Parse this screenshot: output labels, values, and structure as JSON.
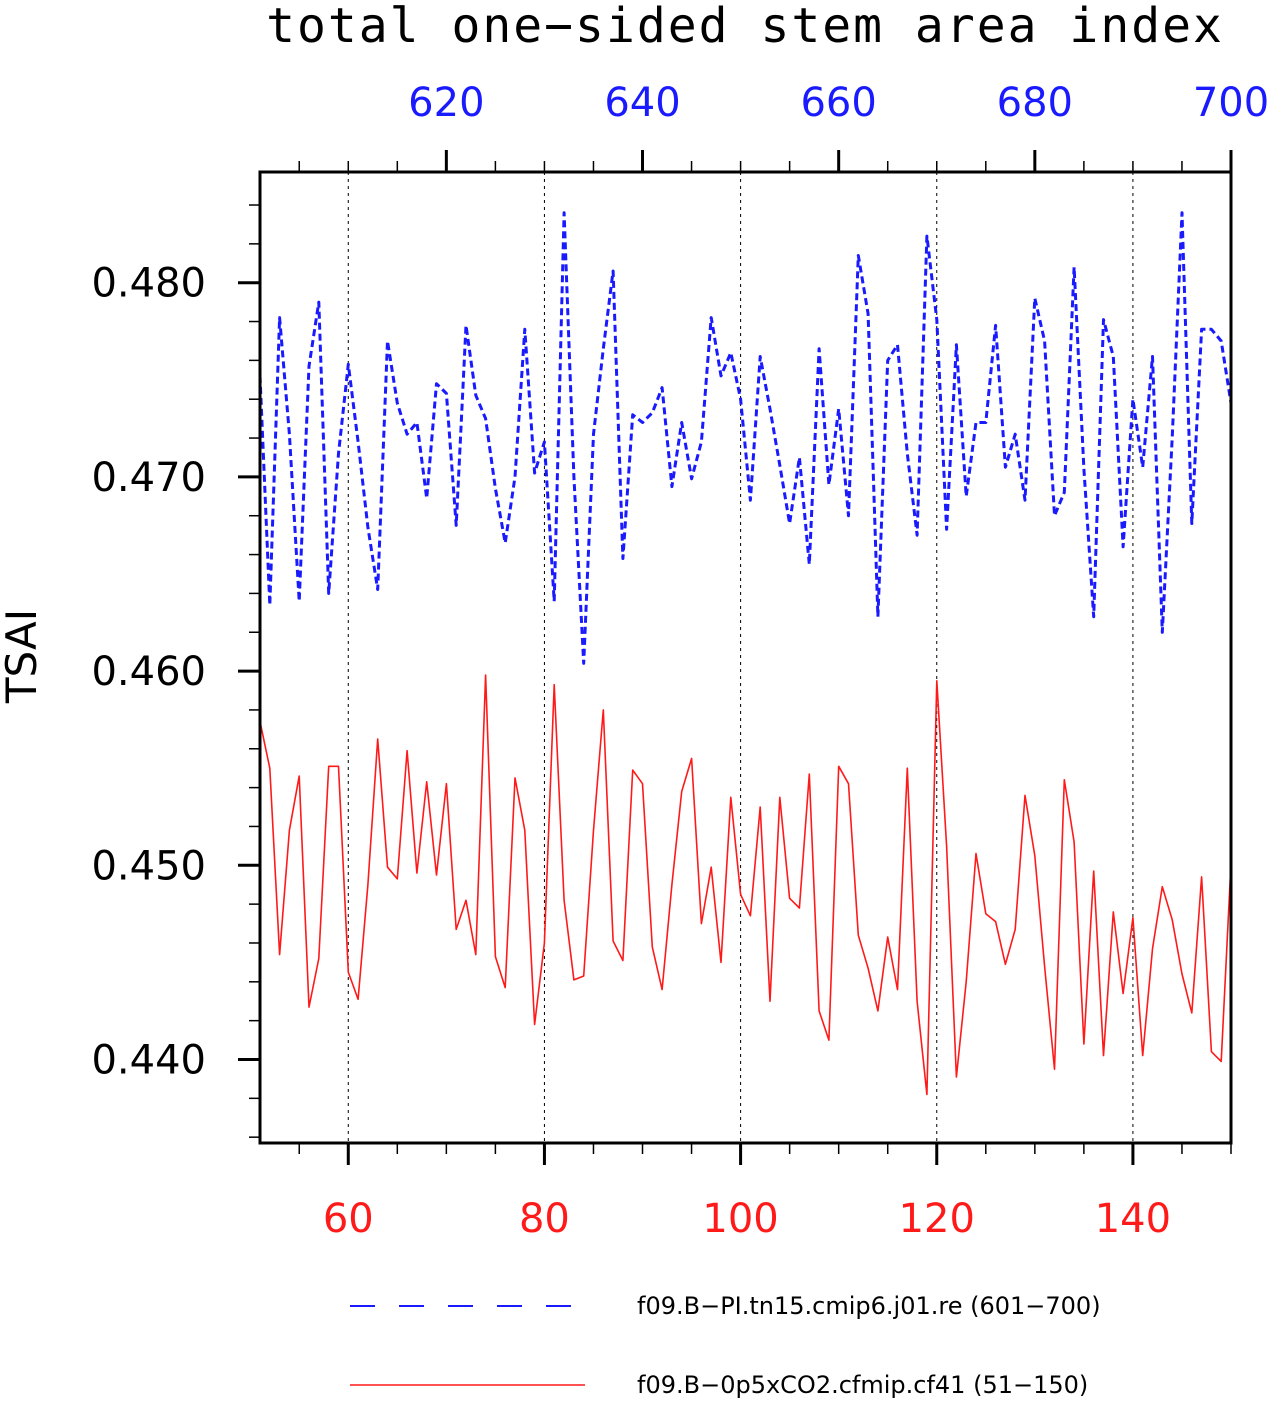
{
  "chart_data": {
    "type": "line",
    "title": "total one−sided stem area index",
    "ylabel": "TSAI",
    "ylim": [
      0.4357,
      0.4857
    ],
    "yticks": [
      "0.440",
      "0.450",
      "0.460",
      "0.470",
      "0.480"
    ],
    "grid": "vertical dashed lines at major bottom-axis ticks",
    "legend_placement": "bottom",
    "x_bottom": {
      "range": [
        51,
        150
      ],
      "ticks": [
        "60",
        "80",
        "100",
        "120",
        "140"
      ],
      "color": "#ff1a1a"
    },
    "x_top": {
      "range": [
        601,
        700
      ],
      "ticks": [
        "620",
        "640",
        "660",
        "680",
        "700"
      ],
      "color": "#1a1aff"
    },
    "series": [
      {
        "name": "f09.B−PI.tn15.cmip6.j01.re (601−700)",
        "axis": "top",
        "style": "dashed",
        "color": "#1a1aff",
        "x_start": 601,
        "values": [
          0.4752,
          0.4634,
          0.4782,
          0.4722,
          0.4636,
          0.4757,
          0.479,
          0.464,
          0.4712,
          0.4758,
          0.4718,
          0.4674,
          0.4642,
          0.477,
          0.4738,
          0.4722,
          0.4728,
          0.4689,
          0.4748,
          0.4743,
          0.4675,
          0.4778,
          0.4742,
          0.473,
          0.4694,
          0.4666,
          0.47,
          0.4776,
          0.4702,
          0.4718,
          0.4636,
          0.4836,
          0.47,
          0.4604,
          0.4722,
          0.4766,
          0.4806,
          0.4658,
          0.4732,
          0.4728,
          0.4733,
          0.4746,
          0.4695,
          0.4728,
          0.4699,
          0.4718,
          0.4782,
          0.4752,
          0.4764,
          0.474,
          0.4688,
          0.4762,
          0.4735,
          0.4706,
          0.4676,
          0.471,
          0.4655,
          0.4766,
          0.4696,
          0.4735,
          0.468,
          0.4814,
          0.4784,
          0.4628,
          0.476,
          0.4768,
          0.4712,
          0.467,
          0.4824,
          0.4781,
          0.4673,
          0.4768,
          0.469,
          0.4728,
          0.4728,
          0.4778,
          0.4705,
          0.4722,
          0.4688,
          0.4792,
          0.477,
          0.468,
          0.4692,
          0.4808,
          0.4704,
          0.4628,
          0.4781,
          0.4762,
          0.4664,
          0.474,
          0.4705,
          0.4762,
          0.462,
          0.472,
          0.4836,
          0.4676,
          0.4776,
          0.4776,
          0.477,
          0.4738
        ]
      },
      {
        "name": "f09.B−0p5xCO2.cfmip.cf41 (51−150)",
        "axis": "bottom",
        "style": "solid",
        "color": "#ff1a1a",
        "x_start": 51,
        "values": [
          0.4574,
          0.455,
          0.4454,
          0.4518,
          0.4546,
          0.4427,
          0.4452,
          0.4551,
          0.4551,
          0.4445,
          0.4431,
          0.449,
          0.4565,
          0.4499,
          0.4493,
          0.4559,
          0.4496,
          0.4543,
          0.4495,
          0.4542,
          0.4467,
          0.4482,
          0.4454,
          0.4598,
          0.4453,
          0.4437,
          0.4545,
          0.4518,
          0.4418,
          0.446,
          0.4593,
          0.4482,
          0.4441,
          0.4443,
          0.4518,
          0.458,
          0.4461,
          0.4451,
          0.4549,
          0.4542,
          0.4458,
          0.4436,
          0.449,
          0.4538,
          0.4555,
          0.447,
          0.4499,
          0.445,
          0.4535,
          0.4485,
          0.4474,
          0.453,
          0.443,
          0.4535,
          0.4483,
          0.4478,
          0.4547,
          0.4425,
          0.441,
          0.4551,
          0.4542,
          0.4464,
          0.4447,
          0.4425,
          0.4463,
          0.4436,
          0.455,
          0.443,
          0.4382,
          0.4595,
          0.451,
          0.4391,
          0.444,
          0.4506,
          0.4475,
          0.4471,
          0.4449,
          0.4467,
          0.4536,
          0.4505,
          0.4448,
          0.4395,
          0.4544,
          0.4512,
          0.4408,
          0.4497,
          0.4402,
          0.4476,
          0.4434,
          0.4473,
          0.4402,
          0.4457,
          0.4489,
          0.4472,
          0.4444,
          0.4424,
          0.4494,
          0.4404,
          0.4399,
          0.4501
        ]
      }
    ]
  }
}
